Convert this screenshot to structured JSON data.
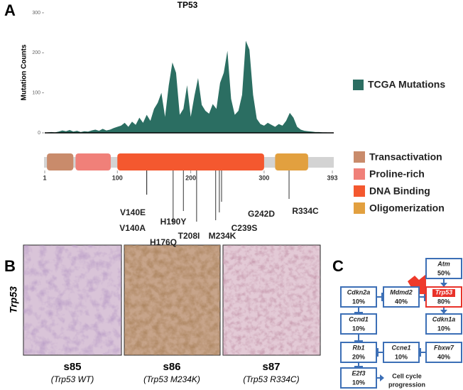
{
  "panel_labels": [
    "A",
    "B",
    "C"
  ],
  "chart_data": {
    "type": "area",
    "title": "TP53",
    "y_label": "Mutation Counts",
    "xlim": [
      1,
      393
    ],
    "ylim": [
      0,
      300
    ],
    "yticks": [
      0,
      100,
      200,
      300
    ],
    "x": [
      1,
      5,
      10,
      15,
      20,
      25,
      30,
      35,
      40,
      45,
      50,
      55,
      60,
      65,
      70,
      75,
      80,
      85,
      90,
      95,
      100,
      105,
      110,
      115,
      120,
      125,
      130,
      135,
      140,
      145,
      150,
      155,
      160,
      165,
      170,
      175,
      180,
      185,
      190,
      195,
      200,
      205,
      210,
      215,
      220,
      225,
      230,
      235,
      240,
      245,
      250,
      255,
      260,
      265,
      270,
      275,
      280,
      285,
      290,
      295,
      300,
      305,
      310,
      315,
      320,
      325,
      330,
      335,
      340,
      345,
      350,
      355,
      360,
      365,
      370,
      375,
      380,
      385,
      390,
      393
    ],
    "series": [
      {
        "name": "TCGA Mutations",
        "color": "#2b6e62",
        "values": [
          0,
          1,
          2,
          1,
          3,
          6,
          4,
          7,
          3,
          5,
          2,
          4,
          3,
          6,
          8,
          5,
          10,
          6,
          8,
          12,
          15,
          18,
          25,
          15,
          28,
          20,
          38,
          25,
          45,
          30,
          60,
          75,
          100,
          40,
          118,
          176,
          150,
          45,
          60,
          119,
          40,
          92,
          137,
          70,
          55,
          48,
          72,
          60,
          125,
          150,
          205,
          85,
          45,
          55,
          95,
          230,
          208,
          95,
          35,
          22,
          18,
          25,
          20,
          15,
          22,
          18,
          30,
          50,
          38,
          15,
          8,
          5,
          4,
          3,
          2,
          2,
          1,
          1,
          0,
          0
        ]
      }
    ]
  },
  "protein_track": {
    "xlim": [
      1,
      393
    ],
    "ticks": [
      1,
      100,
      200,
      300,
      393
    ],
    "bar_color": "#d3d3d3",
    "domains": [
      {
        "name": "Transactivation",
        "start": 4,
        "end": 40,
        "color": "#c98b6b"
      },
      {
        "name": "Proline-rich",
        "start": 43,
        "end": 91,
        "color": "#f08079"
      },
      {
        "name": "DNA Binding",
        "start": 100,
        "end": 300,
        "color": "#f4582f"
      },
      {
        "name": "Oligomerization",
        "start": 315,
        "end": 360,
        "color": "#e2a03f"
      }
    ],
    "mutations": [
      {
        "label": "V140E",
        "position": 140
      },
      {
        "label": "V140A",
        "position": 140
      },
      {
        "label": "H176Q",
        "position": 176
      },
      {
        "label": "H190Y",
        "position": 190
      },
      {
        "label": "T208I",
        "position": 208
      },
      {
        "label": "M234K",
        "position": 234
      },
      {
        "label": "C239S",
        "position": 239
      },
      {
        "label": "G242D",
        "position": 242
      },
      {
        "label": "R334C",
        "position": 334
      }
    ]
  },
  "panel_b": {
    "row_label": "Trp53",
    "samples": [
      {
        "name": "s85",
        "genotype": "(Trp53 WT)"
      },
      {
        "name": "s86",
        "genotype": "(Trp53 M234K)"
      },
      {
        "name": "s87",
        "genotype": "(Trp53 R334C)"
      }
    ]
  },
  "panel_c": {
    "nodes": [
      {
        "gene": "Atm",
        "percent": "50%"
      },
      {
        "gene": "Cdkn2a",
        "percent": "10%"
      },
      {
        "gene": "Mdmd2",
        "percent": "40%"
      },
      {
        "gene": "Trp53",
        "percent": "80%"
      },
      {
        "gene": "Ccnd1",
        "percent": "10%"
      },
      {
        "gene": "Cdkn1a",
        "percent": "10%"
      },
      {
        "gene": "Rb1",
        "percent": "20%"
      },
      {
        "gene": "Ccne1",
        "percent": "10%"
      },
      {
        "gene": "Fbxw7",
        "percent": "40%"
      },
      {
        "gene": "E2f3",
        "percent": "10%"
      }
    ],
    "outcome": [
      "Cell cycle",
      "progression"
    ]
  }
}
